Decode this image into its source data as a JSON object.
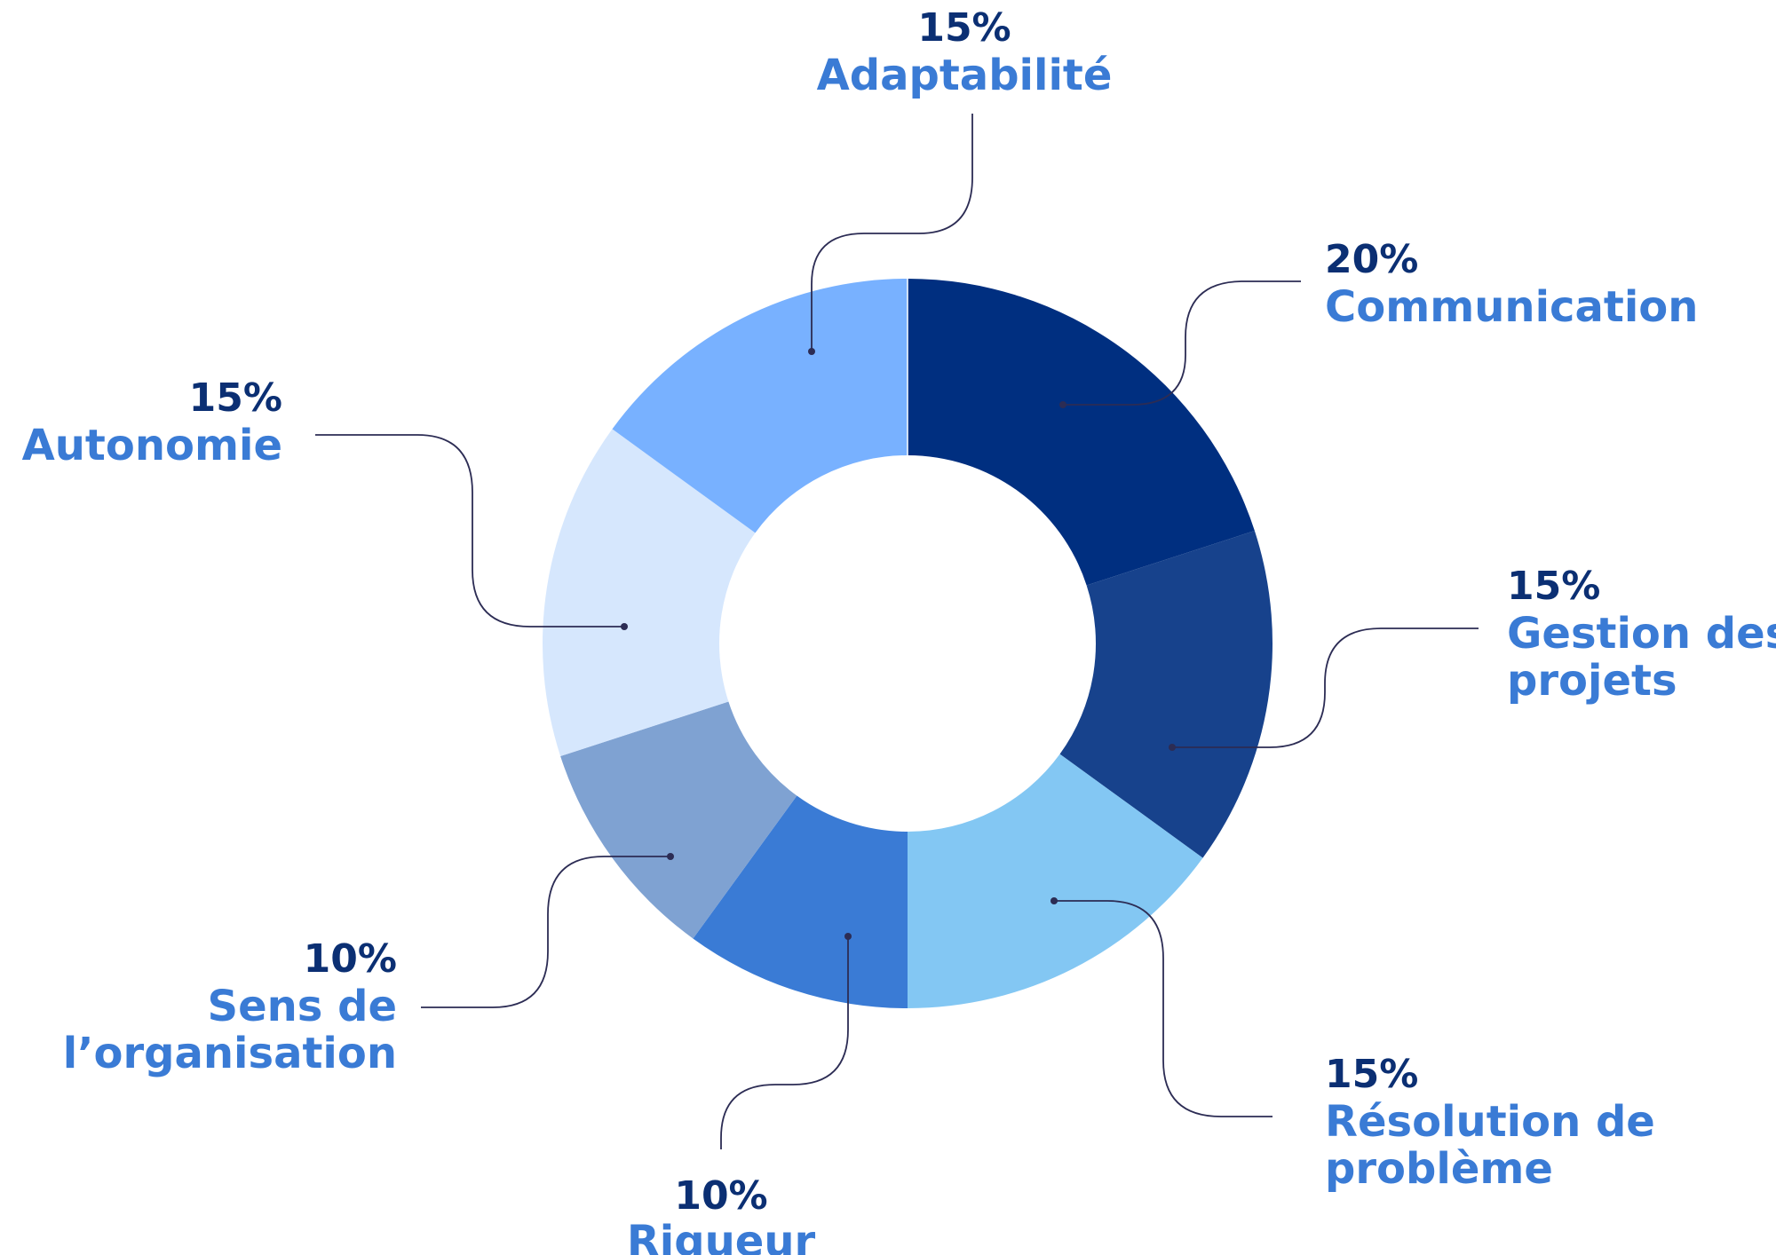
{
  "chart_data": {
    "type": "pie",
    "variant": "donut",
    "unit": "%",
    "slices": [
      {
        "label_lines": [
          "Communication"
        ],
        "percent_label": "20%",
        "value": 20,
        "color": "#002F80"
      },
      {
        "label_lines": [
          "Gestion des",
          "projets"
        ],
        "percent_label": "15%",
        "value": 15,
        "color": "#17428C"
      },
      {
        "label_lines": [
          "Résolution de",
          "problème"
        ],
        "percent_label": "15%",
        "value": 15,
        "color": "#83C7F3"
      },
      {
        "label_lines": [
          "Rigueur"
        ],
        "percent_label": "10%",
        "value": 10,
        "color": "#3A7BD5"
      },
      {
        "label_lines": [
          "Sens de",
          "l’organisation"
        ],
        "percent_label": "10%",
        "value": 10,
        "color": "#7FA2D2"
      },
      {
        "label_lines": [
          "Autonomie"
        ],
        "percent_label": "15%",
        "value": 15,
        "color": "#D6E7FD"
      },
      {
        "label_lines": [
          "Adaptabilité"
        ],
        "percent_label": "15%",
        "value": 15,
        "color": "#78B1FF"
      }
    ]
  },
  "colors": {
    "percent_text": "#0B2F73",
    "label_text": "#3A7BD5",
    "leader_line": "#2C2C54"
  }
}
